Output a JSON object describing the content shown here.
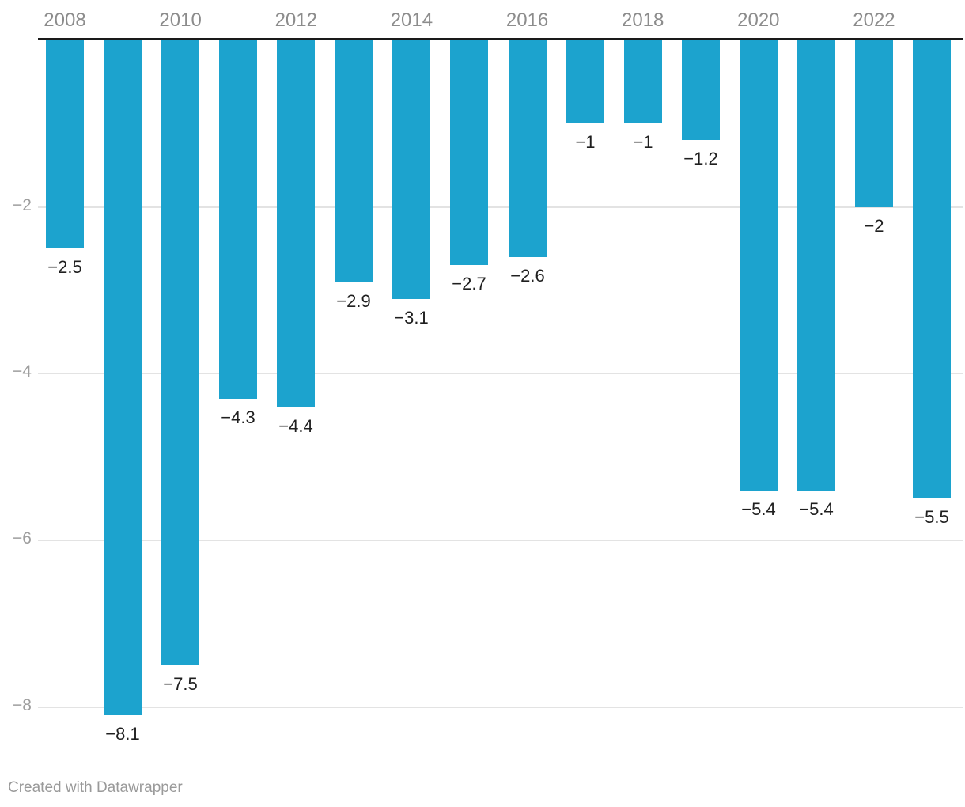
{
  "chart_data": {
    "type": "bar",
    "orientation": "vertical-negative",
    "categories": [
      "2008",
      "2009",
      "2010",
      "2011",
      "2012",
      "2013",
      "2014",
      "2015",
      "2016",
      "2017",
      "2018",
      "2019",
      "2020",
      "2021",
      "2022",
      "2023"
    ],
    "values": [
      -2.5,
      -8.1,
      -7.5,
      -4.3,
      -4.4,
      -2.9,
      -3.1,
      -2.7,
      -2.6,
      -1,
      -1,
      -1.2,
      -5.4,
      -5.4,
      -2,
      -5.5
    ],
    "bar_labels": [
      "−2.5",
      "−8.1",
      "−7.5",
      "−4.3",
      "−4.4",
      "−2.9",
      "−3.1",
      "−2.7",
      "−2.6",
      "−1",
      "−1",
      "−1.2",
      "−5.4",
      "−5.4",
      "−2",
      "−5.5"
    ],
    "x_axis": {
      "position": "top",
      "tick_labels": [
        "2008",
        "2010",
        "2012",
        "2014",
        "2016",
        "2018",
        "2020",
        "2022"
      ]
    },
    "y_axis": {
      "ticks": [
        -2,
        -4,
        -6,
        -8
      ],
      "tick_labels": [
        "−2",
        "−4",
        "−6",
        "−8"
      ]
    },
    "ylim": [
      -8.7,
      0
    ],
    "grid": true,
    "legend": "none",
    "colors": {
      "bar": "#1ca3ce",
      "axis_line": "#1a1a1a",
      "gridline": "#e3e3e3",
      "x_tick_label": "#8c8c8c",
      "y_tick_label": "#9e9e9e",
      "bar_label": "#1f1f1f"
    }
  },
  "footer": {
    "credit": "Created with Datawrapper",
    "credit_color": "#9a9a9a"
  }
}
